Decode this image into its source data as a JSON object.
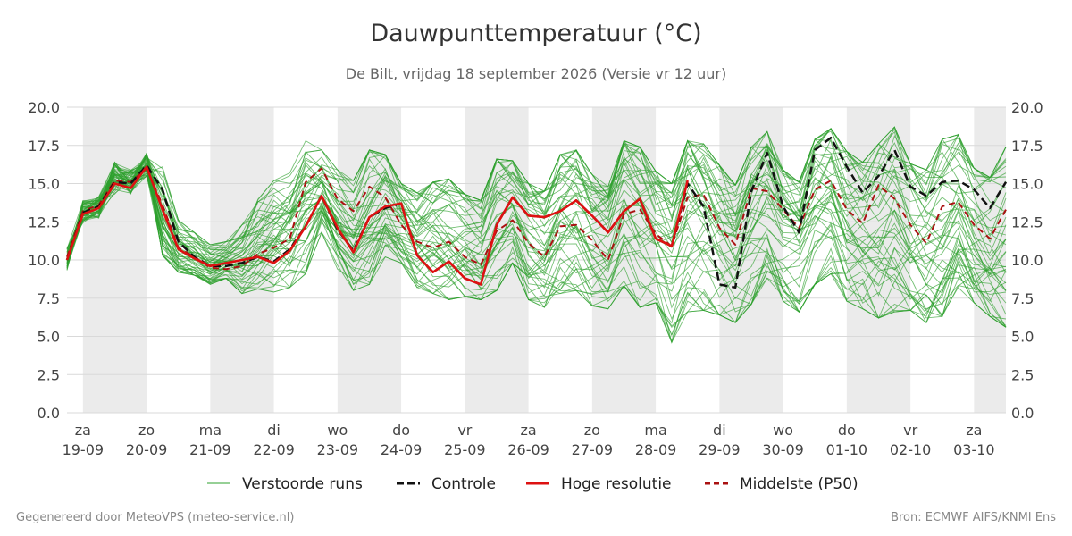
{
  "title": "Dauwpunttemperatuur (°C)",
  "subtitle": "De Bilt, vrijdag 18 september 2026 (Versie vr 12 uur)",
  "footer_left": "Gegenereerd door MeteoVPS (meteo-service.nl)",
  "footer_right": "Bron: ECMWF AIFS/KNMI Ens",
  "colors": {
    "ensemble": "#2ca02c",
    "control": "#111111",
    "high_res": "#dd1111",
    "median": "#aa1111",
    "weekend_band": "#ebebeb",
    "grid": "#d9d9d9"
  },
  "chart_data": {
    "type": "line",
    "xlabel": "",
    "ylabel": "",
    "ylim": [
      0,
      20
    ],
    "y_ticks": [
      "0.0",
      "2.5",
      "5.0",
      "7.5",
      "10.0",
      "12.5",
      "15.0",
      "17.5",
      "20.0"
    ],
    "x_ticks": [
      {
        "day": "za",
        "date": "19-09"
      },
      {
        "day": "zo",
        "date": "20-09"
      },
      {
        "day": "ma",
        "date": "21-09"
      },
      {
        "day": "di",
        "date": "22-09"
      },
      {
        "day": "wo",
        "date": "23-09"
      },
      {
        "day": "do",
        "date": "24-09"
      },
      {
        "day": "vr",
        "date": "25-09"
      },
      {
        "day": "za",
        "date": "26-09"
      },
      {
        "day": "zo",
        "date": "27-09"
      },
      {
        "day": "ma",
        "date": "28-09"
      },
      {
        "day": "di",
        "date": "29-09"
      },
      {
        "day": "wo",
        "date": "30-09"
      },
      {
        "day": "do",
        "date": "01-10"
      },
      {
        "day": "vr",
        "date": "02-10"
      },
      {
        "day": "za",
        "date": "03-10"
      }
    ],
    "x_range_days": [
      -0.25,
      14.5
    ],
    "step_hours": 6,
    "shaded_bands_days": [
      [
        0,
        1
      ],
      [
        2,
        3
      ],
      [
        4,
        5
      ],
      [
        6,
        7
      ],
      [
        8,
        9
      ],
      [
        10,
        11
      ],
      [
        12,
        13
      ],
      [
        14,
        14.5
      ]
    ],
    "grid": true,
    "legend_position": "bottom",
    "legend": [
      {
        "key": "ensemble",
        "label": "Verstoorde runs",
        "style": "thin"
      },
      {
        "key": "control",
        "label": "Controle",
        "style": "dashed"
      },
      {
        "key": "high_res",
        "label": "Hoge resolutie",
        "style": "solid"
      },
      {
        "key": "median",
        "label": "Middelste (P50)",
        "style": "dashed"
      }
    ],
    "series": [
      {
        "name": "Controle",
        "key": "control",
        "x0": -0.25,
        "values": [
          10.0,
          13.1,
          13.5,
          15.1,
          15.0,
          16.2,
          14.6,
          11.2,
          10.2,
          9.6,
          9.6,
          9.8,
          10.2,
          9.9,
          10.7,
          12.2,
          14.2,
          12.0,
          10.6,
          12.8,
          13.4,
          13.7,
          10.3,
          9.2,
          9.9,
          8.8,
          8.4,
          12.3,
          14.1,
          12.9,
          12.8,
          13.2,
          13.9,
          12.9,
          11.8,
          13.2,
          14.0,
          11.4,
          10.9,
          15.0,
          13.5,
          8.4,
          8.2,
          14.5,
          17.0,
          13.5,
          11.8,
          17.2,
          18.0,
          16.1,
          14.4,
          15.5,
          17.2,
          14.8,
          14.2,
          15.1,
          15.2,
          14.6,
          13.4,
          15.1
        ]
      },
      {
        "name": "Hoge resolutie",
        "key": "high_res",
        "x0": -0.25,
        "values": [
          10.0,
          13.0,
          13.4,
          15.0,
          14.7,
          16.1,
          13.3,
          10.7,
          10.1,
          9.6,
          9.8,
          10.0,
          10.2,
          9.8,
          10.6,
          12.2,
          14.2,
          12.1,
          10.5,
          12.8,
          13.5,
          13.7,
          10.3,
          9.2,
          9.9,
          8.8,
          8.4,
          12.3,
          14.1,
          12.9,
          12.8,
          13.2,
          13.9,
          12.9,
          11.8,
          13.2,
          14.0,
          11.4,
          10.9,
          15.2
        ]
      },
      {
        "name": "Middelste (P50)",
        "key": "median",
        "x0": -0.25,
        "values": [
          10.2,
          13.2,
          13.6,
          15.2,
          15.1,
          16.0,
          13.6,
          10.8,
          10.2,
          9.5,
          9.4,
          9.6,
          10.4,
          10.8,
          11.4,
          15.1,
          16.0,
          14.0,
          13.2,
          14.8,
          14.1,
          12.3,
          11.2,
          10.8,
          11.2,
          10.2,
          9.7,
          11.9,
          12.6,
          11.1,
          10.2,
          12.2,
          12.3,
          11.3,
          10.0,
          13.0,
          13.3,
          11.7,
          10.9,
          14.1,
          14.3,
          12.1,
          11.0,
          14.7,
          14.5,
          13.3,
          12.1,
          14.6,
          15.2,
          13.3,
          12.4,
          14.9,
          14.0,
          12.3,
          11.1,
          13.5,
          13.8,
          12.3,
          11.4,
          13.3
        ]
      }
    ],
    "ensemble_description": "Verstoorde runs: ensemble of perturbed members, thin green lines between approx. 5 and 18.5 °C",
    "ensemble_member_count": 50,
    "ensemble_members_x0": -0.25,
    "ensemble_envelope": {
      "min": [
        9.3,
        12.4,
        12.7,
        14.3,
        14.3,
        15.4,
        10.3,
        9.2,
        9.0,
        8.4,
        8.8,
        7.8,
        8.1,
        7.9,
        8.2,
        9.1,
        11.8,
        9.4,
        8.0,
        8.4,
        10.2,
        9.8,
        8.2,
        7.8,
        7.4,
        7.6,
        7.4,
        8.0,
        9.8,
        7.4,
        6.9,
        7.8,
        8.0,
        7.0,
        6.8,
        8.3,
        6.9,
        7.2,
        4.6,
        6.6,
        6.7,
        6.4,
        5.9,
        7.1,
        8.8,
        7.3,
        6.6,
        8.4,
        9.1,
        7.3,
        6.8,
        6.2,
        6.6,
        6.7,
        5.9,
        6.3,
        8.2,
        7.2,
        6.3,
        5.6
      ],
      "max": [
        10.8,
        13.9,
        14.2,
        16.5,
        15.9,
        17.0,
        16.1,
        12.6,
        11.8,
        11.0,
        11.2,
        12.3,
        14.2,
        15.2,
        15.7,
        17.8,
        17.2,
        15.9,
        15.2,
        17.2,
        16.9,
        15.0,
        14.4,
        15.1,
        15.3,
        14.3,
        13.9,
        16.6,
        16.5,
        15.0,
        14.5,
        16.9,
        17.2,
        15.6,
        14.8,
        17.8,
        17.4,
        15.8,
        15.0,
        17.8,
        17.6,
        16.2,
        14.9,
        17.4,
        18.4,
        15.9,
        15.1,
        17.9,
        18.6,
        17.1,
        16.4,
        17.6,
        18.7,
        16.3,
        15.9,
        17.9,
        18.2,
        16.0,
        15.4,
        17.4
      ]
    }
  }
}
